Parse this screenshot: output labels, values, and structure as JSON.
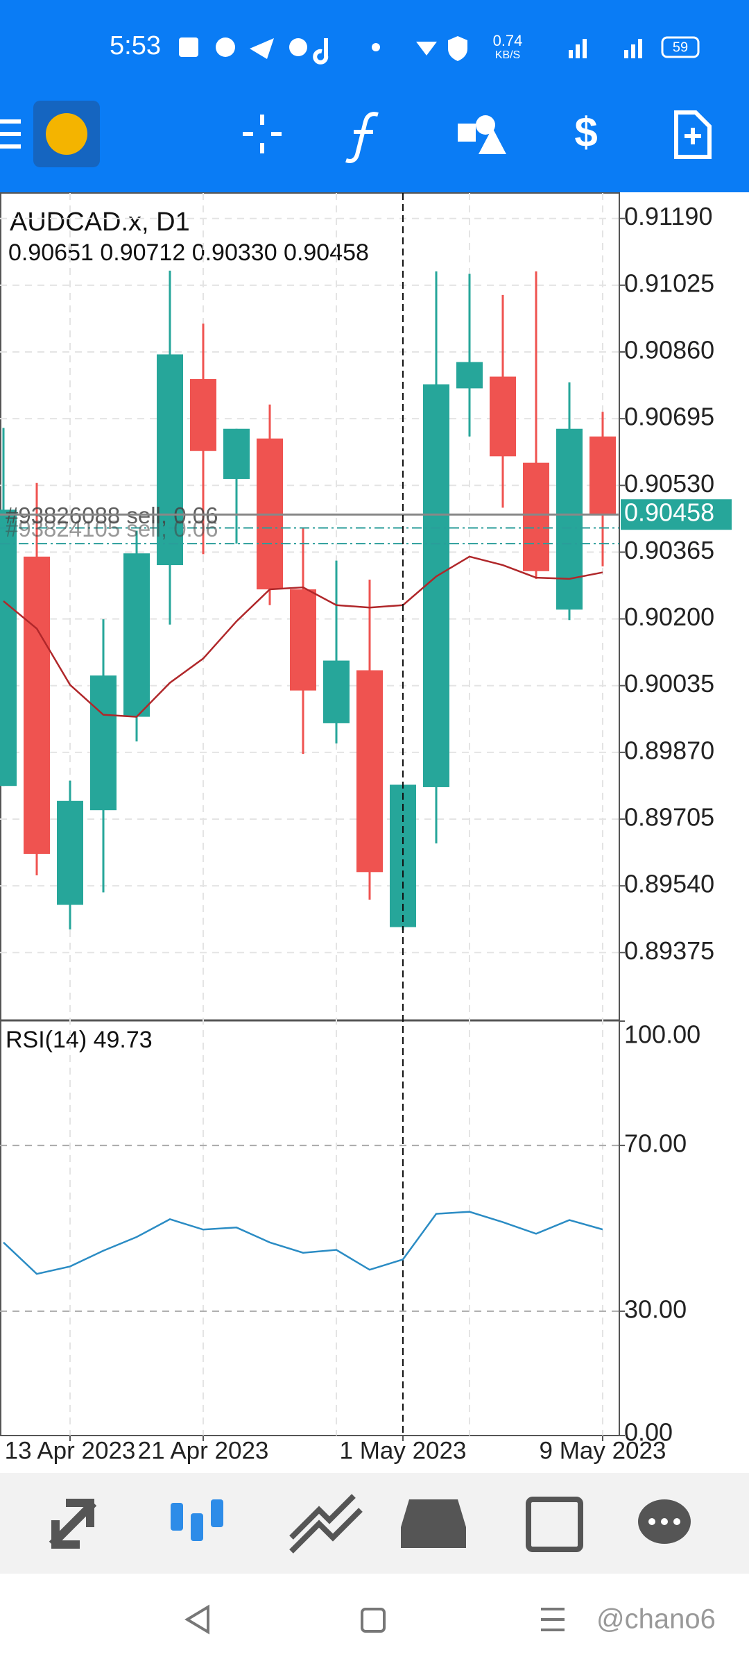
{
  "status_bar": {
    "time": "5:53",
    "net_speed": "0.74",
    "net_unit": "KB/S",
    "battery": "59"
  },
  "watermark": "@chano6",
  "chart_data": [
    {
      "type": "candlestick",
      "title": "AUDCAD.x, D1",
      "subtitle": "0.90651 0.90712 0.90330 0.90458",
      "categories": [
        null,
        null,
        "13 Apr 2023",
        null,
        null,
        null,
        "21 Apr 2023",
        null,
        null,
        null,
        null,
        null,
        "1 May 2023",
        null,
        null,
        null,
        null,
        null,
        "9 May 2023"
      ],
      "open": [
        0.89787,
        0.90354,
        0.89493,
        0.89727,
        0.89958,
        0.90333,
        0.90793,
        0.90546,
        0.90646,
        0.90273,
        0.89942,
        0.90073,
        0.89438,
        0.89784,
        0.9077,
        0.90799,
        0.90586,
        0.90223,
        0.90651
      ],
      "high": [
        0.90672,
        0.90536,
        0.898,
        0.90199,
        0.90418,
        0.91061,
        0.9093,
        0.9067,
        0.9073,
        0.90425,
        0.90344,
        0.90297,
        0.8979,
        0.91059,
        0.91053,
        0.91001,
        0.91059,
        0.90785,
        0.90712
      ],
      "low": [
        0.89787,
        0.89566,
        0.89432,
        0.89524,
        0.89897,
        0.90186,
        0.9036,
        0.90386,
        0.90234,
        0.89866,
        0.89892,
        0.89506,
        0.8943,
        0.89645,
        0.90651,
        0.90475,
        0.90299,
        0.90197,
        0.9033
      ],
      "close": [
        0.9047,
        0.89619,
        0.8975,
        0.9006,
        0.90362,
        0.90854,
        0.90615,
        0.9067,
        0.90273,
        0.90023,
        0.90097,
        0.89574,
        0.8979,
        0.9078,
        0.90835,
        0.90602,
        0.90318,
        0.9067,
        0.90458
      ],
      "up_color": "#26a69a",
      "down_color": "#ef5350",
      "series": [
        {
          "name": "MA",
          "color": "#b0272a",
          "values": [
            0.90244,
            0.90176,
            0.90037,
            0.89963,
            0.89958,
            0.90042,
            0.90102,
            0.90194,
            0.90273,
            0.90278,
            0.90234,
            0.90228,
            0.90234,
            0.90305,
            0.90354,
            0.90333,
            0.90302,
            0.90299,
            0.90315
          ]
        }
      ],
      "orders": [
        {
          "label": "#93826088 sell, 0.06",
          "value": 0.90425
        },
        {
          "label": "#93824105 sell, 0.06",
          "value": 0.90386
        }
      ],
      "last_price": 0.90458,
      "ylim": [
        0.89209,
        0.91253
      ],
      "yticks": [
        {
          "value": 0.9119,
          "label": "0.91190"
        },
        {
          "value": 0.91025,
          "label": "0.91025"
        },
        {
          "value": 0.9086,
          "label": "0.90860"
        },
        {
          "value": 0.90695,
          "label": "0.90695"
        },
        {
          "value": 0.9053,
          "label": "0.90530"
        },
        {
          "value": 0.90365,
          "label": "0.90365"
        },
        {
          "value": 0.902,
          "label": "0.90200"
        },
        {
          "value": 0.90035,
          "label": "0.90035"
        },
        {
          "value": 0.8987,
          "label": "0.89870"
        },
        {
          "value": 0.89705,
          "label": "0.89705"
        },
        {
          "value": 0.8954,
          "label": "0.89540"
        },
        {
          "value": 0.89375,
          "label": "0.89375"
        }
      ],
      "grid": true
    },
    {
      "type": "line",
      "title": "RSI(14) 49.73",
      "series": [
        {
          "name": "RSI(14)",
          "color": "#2b8cc4",
          "values": [
            46.6,
            39.0,
            40.8,
            44.6,
            47.9,
            52.2,
            49.7,
            50.2,
            46.6,
            44.1,
            44.8,
            40.0,
            42.5,
            53.5,
            54.0,
            51.5,
            48.7,
            52.0,
            49.73
          ]
        }
      ],
      "ylim": [
        0,
        100
      ],
      "yticks": [
        {
          "value": 100,
          "label": "100.00"
        },
        {
          "value": 70,
          "label": "70.00"
        },
        {
          "value": 30,
          "label": "30.00"
        },
        {
          "value": 0,
          "label": "0.00"
        }
      ],
      "grid": true
    }
  ]
}
